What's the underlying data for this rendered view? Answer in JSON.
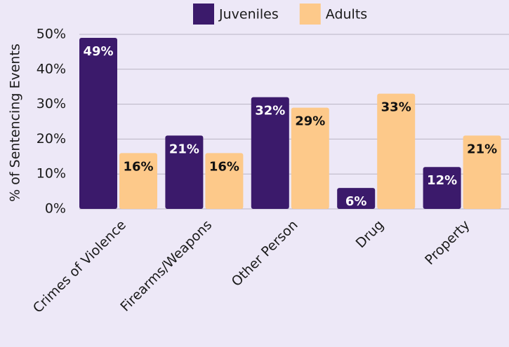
{
  "chart_data": {
    "type": "bar",
    "y_label": "% of Sentencing Events",
    "categories": [
      "Crimes of Violence",
      "Firearms/Weapons",
      "Other Person",
      "Drug",
      "Property"
    ],
    "series": [
      {
        "name": "Juveniles",
        "color": "#3b1a6b",
        "label_color": "#ffffff",
        "values": [
          49,
          21,
          32,
          6,
          12
        ],
        "value_labels": [
          "49%",
          "21%",
          "32%",
          "6%",
          "12%"
        ]
      },
      {
        "name": "Adults",
        "color": "#fdc98a",
        "label_color": "#111111",
        "values": [
          16,
          16,
          29,
          33,
          21
        ],
        "value_labels": [
          "16%",
          "16%",
          "29%",
          "33%",
          "21%"
        ]
      }
    ],
    "ylim": [
      0,
      50
    ],
    "yticks": [
      {
        "value": 0,
        "label": "0%"
      },
      {
        "value": 10,
        "label": "10%"
      },
      {
        "value": 20,
        "label": "20%"
      },
      {
        "value": 30,
        "label": "30%"
      },
      {
        "value": 40,
        "label": "40%"
      },
      {
        "value": 50,
        "label": "50%"
      }
    ],
    "grid": true
  }
}
